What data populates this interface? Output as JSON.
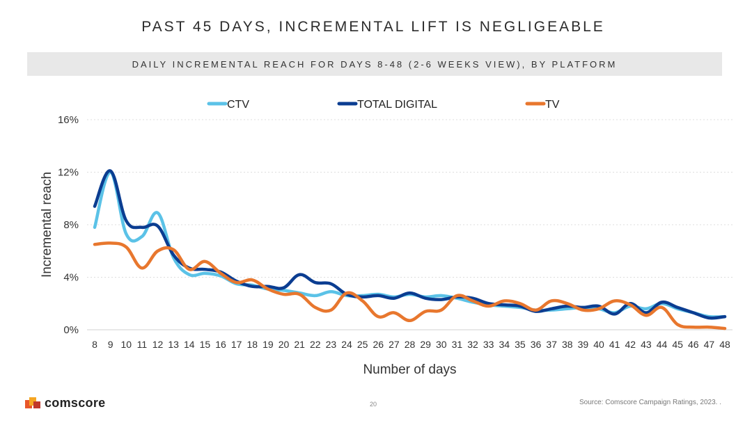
{
  "slide": {
    "title": "PAST 45 DAYS, INCREMENTAL LIFT IS NEGLIGEABLE",
    "subtitle": "DAILY INCREMENTAL REACH FOR DAYS 8-48 (2-6 WEEKS VIEW), BY PLATFORM",
    "page_number": "20",
    "source": "Source: Comscore Campaign Ratings, 2023. .",
    "logo_text": "comscore"
  },
  "chart_data": {
    "type": "line",
    "title": "DAILY INCREMENTAL REACH FOR DAYS 8-48 (2-6 WEEKS VIEW), BY PLATFORM",
    "xlabel": "Number of days",
    "ylabel": "Incremental reach",
    "ylim": [
      0,
      16
    ],
    "yticks": [
      0,
      4,
      8,
      12,
      16
    ],
    "ytick_labels": [
      "0%",
      "4%",
      "8%",
      "12%",
      "16%"
    ],
    "grid": true,
    "legend_position": "top",
    "x": [
      8,
      9,
      10,
      11,
      12,
      13,
      14,
      15,
      16,
      17,
      18,
      19,
      20,
      21,
      22,
      23,
      24,
      25,
      26,
      27,
      28,
      29,
      30,
      31,
      32,
      33,
      34,
      35,
      36,
      37,
      38,
      39,
      40,
      41,
      42,
      43,
      44,
      45,
      46,
      47,
      48
    ],
    "series": [
      {
        "name": "CTV",
        "color": "#5bc2e7",
        "values": [
          7.8,
          12.0,
          7.3,
          7.1,
          8.9,
          5.5,
          4.2,
          4.3,
          4.1,
          3.5,
          3.4,
          3.1,
          3.0,
          2.8,
          2.6,
          2.9,
          2.6,
          2.6,
          2.7,
          2.5,
          2.7,
          2.5,
          2.6,
          2.4,
          2.1,
          1.9,
          1.8,
          1.7,
          1.5,
          1.5,
          1.6,
          1.7,
          1.6,
          1.3,
          1.8,
          1.6,
          2.0,
          1.6,
          1.3,
          1.0,
          1.0
        ]
      },
      {
        "name": "TOTAL DIGITAL",
        "color": "#0b3d91",
        "values": [
          9.4,
          12.1,
          8.3,
          7.8,
          7.9,
          5.7,
          4.7,
          4.6,
          4.4,
          3.7,
          3.3,
          3.3,
          3.2,
          4.2,
          3.6,
          3.5,
          2.7,
          2.5,
          2.6,
          2.4,
          2.8,
          2.4,
          2.3,
          2.5,
          2.4,
          2.0,
          1.9,
          1.8,
          1.4,
          1.6,
          1.8,
          1.7,
          1.8,
          1.2,
          2.0,
          1.3,
          2.1,
          1.7,
          1.3,
          0.9,
          1.0
        ]
      },
      {
        "name": "TV",
        "color": "#e8772e",
        "values": [
          6.5,
          6.6,
          6.3,
          4.7,
          6.0,
          6.1,
          4.6,
          5.2,
          4.3,
          3.6,
          3.8,
          3.1,
          2.7,
          2.7,
          1.7,
          1.5,
          2.8,
          2.2,
          1.0,
          1.3,
          0.7,
          1.4,
          1.5,
          2.6,
          2.2,
          1.8,
          2.2,
          2.0,
          1.5,
          2.2,
          2.0,
          1.5,
          1.6,
          2.2,
          1.9,
          1.1,
          1.7,
          0.4,
          0.2,
          0.2,
          0.1
        ]
      }
    ]
  }
}
